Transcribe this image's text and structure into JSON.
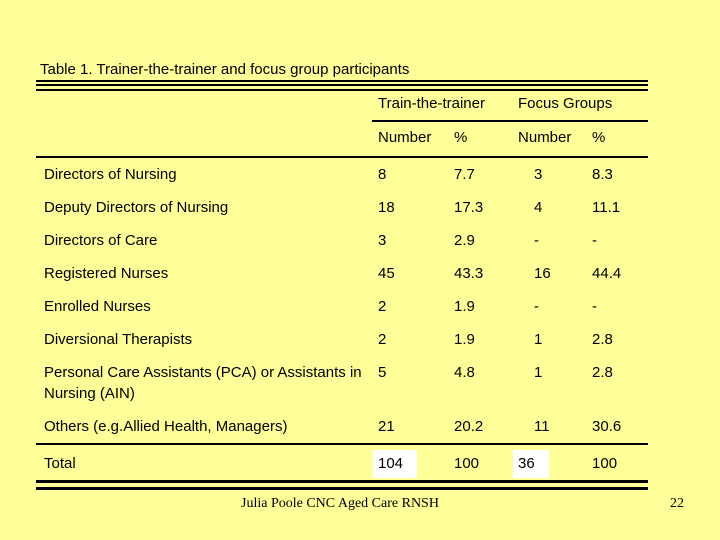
{
  "slide": {
    "background_color": "#FFFF99",
    "title": "Table 1. Trainer-the-trainer and focus group participants",
    "footer": {
      "text": "Julia Poole CNC Aged Care RNSH",
      "page_number": "22"
    }
  },
  "table": {
    "group_headers": [
      {
        "label": "Train-the-trainer"
      },
      {
        "label": "Focus Groups"
      }
    ],
    "column_headers": [
      "Number",
      "%",
      "Number",
      "%"
    ],
    "rows": [
      {
        "label": "Directors of Nursing",
        "values": [
          "8",
          "7.7",
          "3",
          "8.3"
        ]
      },
      {
        "label": "Deputy Directors of Nursing",
        "values": [
          "18",
          "17.3",
          "4",
          "11.1"
        ]
      },
      {
        "label": "Directors of Care",
        "values": [
          "3",
          "2.9",
          "-",
          "-"
        ]
      },
      {
        "label": "Registered Nurses",
        "values": [
          "45",
          "43.3",
          "16",
          "44.4"
        ]
      },
      {
        "label": "Enrolled Nurses",
        "values": [
          "2",
          "1.9",
          "-",
          "-"
        ]
      },
      {
        "label": "Diversional Therapists",
        "values": [
          "2",
          "1.9",
          "1",
          "2.8"
        ]
      },
      {
        "label": "Personal Care Assistants (PCA) or Assistants in Nursing (AIN)",
        "values": [
          "5",
          "4.8",
          "1",
          "2.8"
        ]
      },
      {
        "label": "Others (e.g.Allied Health, Managers)",
        "values": [
          "21",
          "20.2",
          "11",
          "30.6"
        ]
      }
    ],
    "total_row": {
      "label": "Total",
      "values": [
        "104",
        "100",
        "36",
        "100"
      ],
      "highlighted_value_indexes": [
        0,
        2
      ],
      "highlight_color": "#FFFFFF"
    }
  }
}
